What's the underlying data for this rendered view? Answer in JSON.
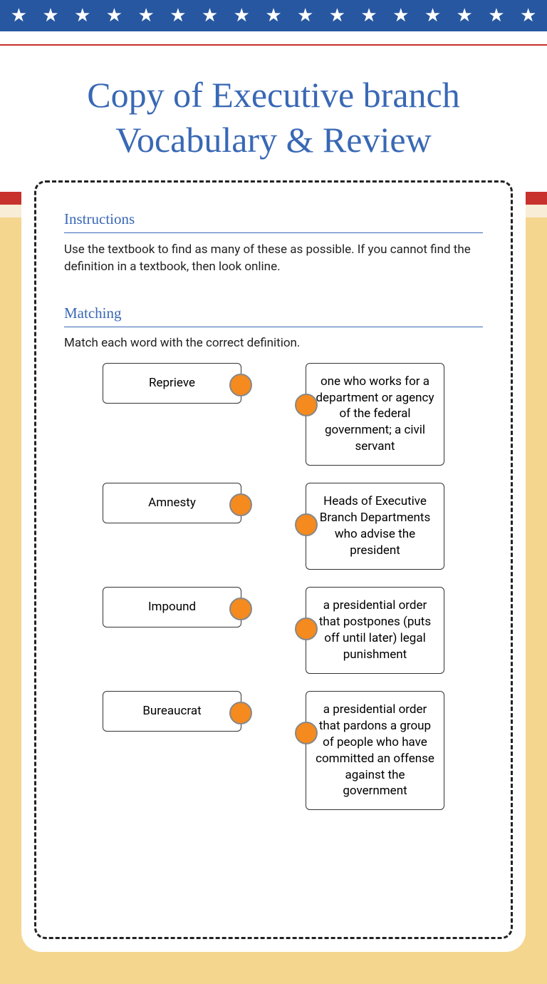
{
  "title": "Copy of Executive branch Vocabulary & Review",
  "instructions": {
    "heading": "Instructions",
    "text": "Use the textbook to find as many of these as possible. If you cannot find the definition in a textbook, then look online."
  },
  "matching": {
    "heading": "Matching",
    "intro": "Match each word with the correct definition.",
    "terms": [
      "Reprieve",
      "Amnesty",
      "Impound",
      "Bureaucrat"
    ],
    "definitions": [
      "one who works for a department or agency of the federal government; a civil servant",
      "Heads of Executive Branch Departments who advise the president",
      "a presidential order that postpones (puts off until later) legal punishment",
      "a presidential order that pardons a group of people who have committed an offense against the government"
    ]
  },
  "colors": {
    "banner_blue": "#2757a0",
    "title_blue": "#3968b5",
    "red": "#c8322c",
    "cream": "#f8edd6",
    "background": "#f5d68f",
    "dot": "#f58a1f"
  },
  "star_count": 17
}
